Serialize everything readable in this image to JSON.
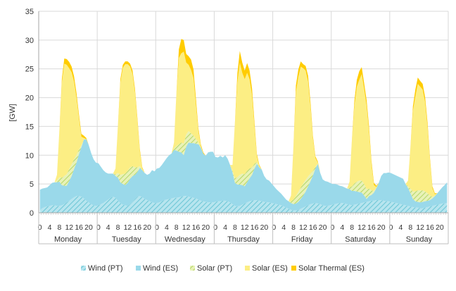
{
  "chart_data": {
    "type": "area",
    "stacked": true,
    "ylabel": "[GW]",
    "ylim": [
      0,
      35
    ],
    "yticks": [
      0,
      5,
      10,
      15,
      20,
      25,
      30,
      35
    ],
    "grid": true,
    "legend_position": "bottom",
    "hour_tick_labels": [
      "0",
      "4",
      "8",
      "12",
      "16",
      "20"
    ],
    "days": [
      "Monday",
      "Tuesday",
      "Wednesday",
      "Thursday",
      "Friday",
      "Saturday",
      "Sunday"
    ],
    "colors": {
      "wind_pt": "#6fc7d6",
      "wind_es": "#9ad9ea",
      "solar_pt": "#b8d86b",
      "solar_es": "#fcee84",
      "solar_thermal_es": "#ffcc00"
    },
    "series": [
      {
        "name": "Wind (PT)",
        "key": "wind_pt",
        "values": [
          0.5,
          0.8,
          1.0,
          1.1,
          1.2,
          1.3,
          1.3,
          1.2,
          1.2,
          1.3,
          1.5,
          1.8,
          2.1,
          2.4,
          2.7,
          2.9,
          2.9,
          2.8,
          2.5,
          2.1,
          1.8,
          1.5,
          1.3,
          1.2,
          1.3,
          1.5,
          1.7,
          2.0,
          2.3,
          2.6,
          2.8,
          2.6,
          2.1,
          1.7,
          1.4,
          1.3,
          1.2,
          1.5,
          1.9,
          2.4,
          2.8,
          2.9,
          2.7,
          2.4,
          2.2,
          2.0,
          1.8,
          1.7,
          1.7,
          1.8,
          2.0,
          2.2,
          2.3,
          2.4,
          2.5,
          2.6,
          2.6,
          2.7,
          2.8,
          2.9,
          2.9,
          2.8,
          2.7,
          2.6,
          2.5,
          2.3,
          2.1,
          2.0,
          1.9,
          1.8,
          1.8,
          1.8,
          1.9,
          2.0,
          2.0,
          2.1,
          2.1,
          2.0,
          1.8,
          1.5,
          1.2,
          1.1,
          1.2,
          1.4,
          1.6,
          1.8,
          2.0,
          2.1,
          2.2,
          2.2,
          2.1,
          2.0,
          1.9,
          1.8,
          1.8,
          1.7,
          1.6,
          1.5,
          1.4,
          1.3,
          1.1,
          0.9,
          0.7,
          0.5,
          0.4,
          0.4,
          0.5,
          0.7,
          0.9,
          1.1,
          1.3,
          1.5,
          1.6,
          1.7,
          1.6,
          1.5,
          1.3,
          1.2,
          1.2,
          1.3,
          1.4,
          1.5,
          1.6,
          1.7,
          1.7,
          1.6,
          1.5,
          1.4,
          1.3,
          1.4,
          1.5,
          1.6,
          1.7,
          1.8,
          1.9,
          2.0,
          2.1,
          2.1,
          2.2,
          2.2,
          2.2,
          2.1,
          2.0,
          2.0,
          1.9,
          1.8,
          1.7,
          1.6,
          1.5,
          1.4,
          1.3,
          1.2,
          1.1,
          1.0,
          0.9,
          0.9,
          0.8,
          0.8,
          0.9,
          1.0,
          1.1,
          1.2,
          1.3,
          1.4,
          1.5,
          1.6,
          1.6,
          1.7
        ]
      },
      {
        "name": "Wind (ES)",
        "key": "wind_es",
        "values": [
          3.5,
          3.4,
          3.3,
          3.3,
          3.6,
          3.9,
          4.0,
          4.1,
          4.2,
          3.5,
          3.2,
          2.9,
          3.4,
          4.0,
          4.9,
          5.8,
          7.3,
          8.6,
          10.2,
          10.7,
          10.0,
          8.9,
          8.0,
          7.5,
          7.3,
          6.5,
          5.7,
          5.0,
          4.5,
          4.2,
          4.0,
          3.8,
          4.0,
          3.6,
          3.6,
          3.5,
          4.0,
          4.4,
          4.5,
          4.2,
          4.3,
          4.9,
          4.7,
          4.5,
          4.4,
          4.8,
          5.6,
          5.5,
          6.0,
          6.0,
          6.3,
          6.7,
          7.2,
          7.6,
          7.8,
          8.3,
          8.2,
          7.9,
          7.7,
          7.1,
          8.6,
          9.4,
          9.4,
          9.5,
          9.5,
          9.6,
          9.2,
          8.3,
          8.0,
          8.7,
          8.8,
          8.8,
          7.8,
          7.6,
          7.9,
          7.5,
          7.9,
          7.4,
          6.5,
          5.5,
          4.0,
          3.8,
          3.7,
          3.4,
          3.0,
          3.5,
          4.0,
          4.5,
          5.5,
          6.3,
          5.8,
          5.5,
          4.5,
          4.0,
          3.8,
          3.4,
          3.0,
          2.6,
          2.3,
          2.0,
          1.7,
          1.4,
          1.3,
          1.2,
          1.1,
          1.2,
          1.4,
          1.7,
          2.1,
          2.6,
          3.3,
          4.0,
          4.9,
          6.0,
          6.9,
          5.4,
          4.5,
          4.3,
          4.2,
          3.9,
          3.6,
          3.5,
          3.3,
          3.0,
          2.9,
          2.8,
          2.7,
          2.7,
          2.5,
          2.4,
          2.2,
          2.0,
          1.8,
          1.2,
          0.5,
          0.9,
          1.0,
          1.4,
          2.1,
          3.0,
          4.2,
          4.8,
          4.9,
          5.0,
          5.0,
          4.9,
          4.8,
          4.7,
          4.6,
          4.5,
          3.7,
          3.1,
          2.3,
          1.4,
          1.1,
          1.0,
          1.0,
          1.1,
          1.1,
          1.1,
          1.1,
          1.3,
          1.6,
          2.0,
          2.4,
          2.8,
          3.2,
          3.6
        ]
      },
      {
        "name": "Solar (PT)",
        "key": "solar_pt",
        "values": [
          0,
          0,
          0,
          0,
          0,
          0,
          0,
          0.3,
          0.8,
          1.3,
          1.7,
          2.0,
          2.1,
          2.0,
          1.7,
          1.3,
          0.8,
          0.3,
          0,
          0,
          0,
          0,
          0,
          0,
          0,
          0,
          0,
          0,
          0,
          0,
          0,
          0.3,
          0.8,
          1.3,
          1.7,
          2.0,
          2.1,
          2.0,
          1.7,
          1.3,
          0.8,
          0.3,
          0,
          0,
          0,
          0,
          0,
          0,
          0,
          0,
          0,
          0,
          0,
          0,
          0,
          0.3,
          0.8,
          1.3,
          1.7,
          2.0,
          2.1,
          2.0,
          1.7,
          1.3,
          0.8,
          0.3,
          0,
          0,
          0,
          0,
          0,
          0,
          0,
          0,
          0,
          0,
          0,
          0,
          0,
          0.3,
          0.8,
          1.3,
          1.7,
          2.0,
          2.1,
          2.0,
          1.7,
          1.3,
          0.8,
          0.3,
          0,
          0,
          0,
          0,
          0,
          0,
          0,
          0,
          0,
          0,
          0,
          0,
          0,
          0.3,
          0.8,
          1.3,
          1.7,
          2.0,
          2.1,
          2.0,
          1.7,
          1.3,
          0.8,
          0.3,
          0,
          0,
          0,
          0,
          0,
          0,
          0,
          0,
          0,
          0,
          0,
          0,
          0,
          0.3,
          0.8,
          1.3,
          1.7,
          2.0,
          2.1,
          2.0,
          1.7,
          1.3,
          0.8,
          0.3,
          0,
          0,
          0,
          0,
          0,
          0,
          0,
          0,
          0,
          0,
          0,
          0,
          0,
          0.3,
          0.8,
          1.3,
          1.7,
          2.0,
          2.1,
          2.0,
          1.7,
          1.3,
          0.8,
          0.3,
          0,
          0,
          0,
          0,
          0,
          0
        ]
      },
      {
        "name": "Solar (ES)",
        "key": "solar_es",
        "values": [
          0,
          0,
          0,
          0,
          0,
          0,
          0,
          1.0,
          8.0,
          16.5,
          19.5,
          19.0,
          17.5,
          16.0,
          13.5,
          10.0,
          5.5,
          1.5,
          0.3,
          0,
          0,
          0,
          0,
          0,
          0,
          0,
          0,
          0,
          0,
          0,
          0,
          1.0,
          8.0,
          16.0,
          18.5,
          19.0,
          18.5,
          17.5,
          16.0,
          13.0,
          8.0,
          2.5,
          0.3,
          0,
          0,
          0,
          0,
          0,
          0,
          0,
          0,
          0,
          0,
          0,
          0,
          1.0,
          9.0,
          15.0,
          15.5,
          16.0,
          12.5,
          11.5,
          11.0,
          10.0,
          6.0,
          2.0,
          0.3,
          0,
          0,
          0,
          0,
          0,
          0,
          0,
          0,
          0,
          0,
          0,
          0,
          1.0,
          9.5,
          16.5,
          19.5,
          17.5,
          16.5,
          17.0,
          15.5,
          12.5,
          6.5,
          1.0,
          0.2,
          0,
          0,
          0,
          0,
          0,
          0,
          0,
          0,
          0,
          0,
          0,
          0,
          1.0,
          9.0,
          18.0,
          20.0,
          21.0,
          20.0,
          19.0,
          16.5,
          11.5,
          5.5,
          1.5,
          0.2,
          0,
          0,
          0,
          0,
          0,
          0,
          0,
          0,
          0,
          0,
          0,
          0,
          1.0,
          8.0,
          13.5,
          16.5,
          17.5,
          18.5,
          16.5,
          14.5,
          10.0,
          4.5,
          1.0,
          0.2,
          0,
          0,
          0,
          0,
          0,
          0,
          0,
          0,
          0,
          0,
          0,
          0,
          1.0,
          7.0,
          14.0,
          16.5,
          18.5,
          18.0,
          17.5,
          15.5,
          11.5,
          6.0,
          1.5,
          0.3,
          0,
          0,
          0,
          0,
          0
        ]
      },
      {
        "name": "Solar Thermal (ES)",
        "key": "solar_thermal_es",
        "values": [
          0,
          0,
          0,
          0,
          0,
          0,
          0,
          0,
          0.2,
          0.7,
          0.9,
          1.0,
          1.1,
          1.0,
          0.9,
          0.8,
          0.6,
          0.5,
          0.4,
          0.2,
          0,
          0,
          0,
          0,
          0,
          0,
          0,
          0,
          0,
          0,
          0,
          0,
          0.2,
          0.6,
          0.5,
          0.5,
          0.5,
          0.5,
          0.6,
          0.6,
          0.5,
          0.4,
          0.2,
          0,
          0,
          0,
          0,
          0,
          0,
          0,
          0,
          0,
          0,
          0,
          0,
          0,
          0.2,
          1.5,
          2.5,
          2.0,
          1.5,
          1.5,
          1.8,
          1.5,
          1.0,
          0.5,
          0.3,
          0.2,
          0,
          0,
          0,
          0,
          0,
          0,
          0,
          0,
          0,
          0,
          0,
          0,
          0.2,
          1.5,
          2.0,
          1.8,
          1.5,
          1.7,
          1.5,
          1.2,
          0.8,
          0.4,
          0.2,
          0,
          0,
          0,
          0,
          0,
          0,
          0,
          0,
          0,
          0,
          0,
          0,
          0,
          0.2,
          1.2,
          1.3,
          0.9,
          0.7,
          0.8,
          1.0,
          0.8,
          0.5,
          0.3,
          0.2,
          0,
          0,
          0,
          0,
          0,
          0,
          0,
          0,
          0,
          0,
          0,
          0,
          0,
          0.2,
          0.9,
          1.2,
          1.5,
          1.2,
          1.0,
          1.0,
          0.8,
          0.6,
          0.4,
          0.2,
          0,
          0,
          0,
          0,
          0,
          0,
          0,
          0,
          0,
          0,
          0,
          0,
          0,
          0.2,
          0.8,
          1.2,
          1.1,
          1.0,
          1.0,
          0.9,
          0.8,
          0.5,
          0.3,
          0.2,
          0,
          0,
          0,
          0,
          0
        ]
      }
    ]
  }
}
